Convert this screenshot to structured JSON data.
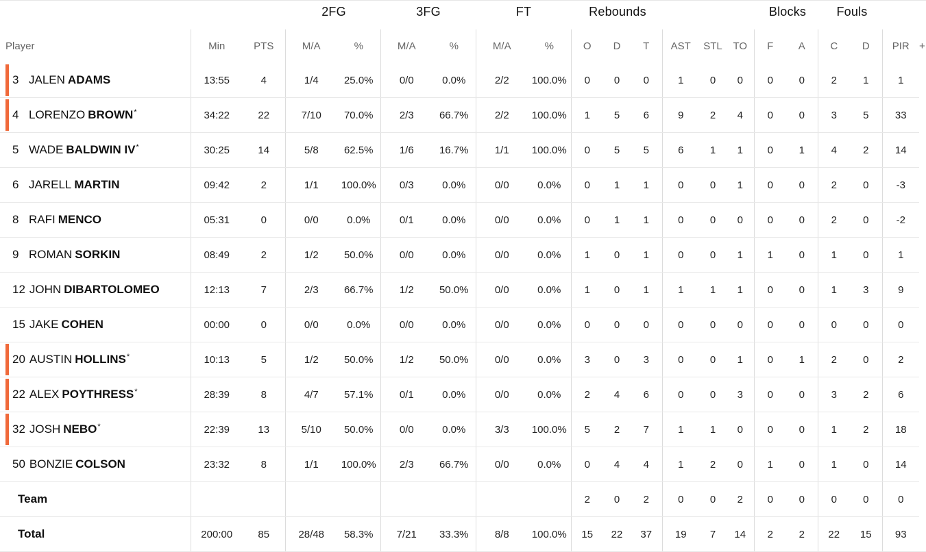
{
  "groups": {
    "fg2": "2FG",
    "fg3": "3FG",
    "ft": "FT",
    "rebounds": "Rebounds",
    "blocks": "Blocks",
    "fouls": "Fouls"
  },
  "columns": {
    "player": "Player",
    "min": "Min",
    "pts": "PTS",
    "fg2_ma": "M/A",
    "fg2_pct": "%",
    "fg3_ma": "M/A",
    "fg3_pct": "%",
    "ft_ma": "M/A",
    "ft_pct": "%",
    "reb_o": "O",
    "reb_d": "D",
    "reb_t": "T",
    "ast": "AST",
    "stl": "STL",
    "to": "TO",
    "blk_f": "F",
    "blk_a": "A",
    "foul_c": "C",
    "foul_d": "D",
    "pir": "PIR",
    "plus": "+"
  },
  "accent_color": "#f0693a",
  "players": [
    {
      "num": "3",
      "first": "JALEN",
      "last": "ADAMS",
      "star": "",
      "highlight": true,
      "min": "13:55",
      "pts": "4",
      "fg2_ma": "1/4",
      "fg2_pct": "25.0%",
      "fg3_ma": "0/0",
      "fg3_pct": "0.0%",
      "ft_ma": "2/2",
      "ft_pct": "100.0%",
      "reb_o": "0",
      "reb_d": "0",
      "reb_t": "0",
      "ast": "1",
      "stl": "0",
      "to": "0",
      "blk_f": "0",
      "blk_a": "0",
      "foul_c": "2",
      "foul_d": "1",
      "pir": "1"
    },
    {
      "num": "4",
      "first": "LORENZO",
      "last": "BROWN",
      "star": "*",
      "highlight": true,
      "min": "34:22",
      "pts": "22",
      "fg2_ma": "7/10",
      "fg2_pct": "70.0%",
      "fg3_ma": "2/3",
      "fg3_pct": "66.7%",
      "ft_ma": "2/2",
      "ft_pct": "100.0%",
      "reb_o": "1",
      "reb_d": "5",
      "reb_t": "6",
      "ast": "9",
      "stl": "2",
      "to": "4",
      "blk_f": "0",
      "blk_a": "0",
      "foul_c": "3",
      "foul_d": "5",
      "pir": "33"
    },
    {
      "num": "5",
      "first": "WADE",
      "last": "BALDWIN IV",
      "star": "*",
      "highlight": false,
      "min": "30:25",
      "pts": "14",
      "fg2_ma": "5/8",
      "fg2_pct": "62.5%",
      "fg3_ma": "1/6",
      "fg3_pct": "16.7%",
      "ft_ma": "1/1",
      "ft_pct": "100.0%",
      "reb_o": "0",
      "reb_d": "5",
      "reb_t": "5",
      "ast": "6",
      "stl": "1",
      "to": "1",
      "blk_f": "0",
      "blk_a": "1",
      "foul_c": "4",
      "foul_d": "2",
      "pir": "14"
    },
    {
      "num": "6",
      "first": "JARELL",
      "last": "MARTIN",
      "star": "",
      "highlight": false,
      "min": "09:42",
      "pts": "2",
      "fg2_ma": "1/1",
      "fg2_pct": "100.0%",
      "fg3_ma": "0/3",
      "fg3_pct": "0.0%",
      "ft_ma": "0/0",
      "ft_pct": "0.0%",
      "reb_o": "0",
      "reb_d": "1",
      "reb_t": "1",
      "ast": "0",
      "stl": "0",
      "to": "1",
      "blk_f": "0",
      "blk_a": "0",
      "foul_c": "2",
      "foul_d": "0",
      "pir": "-3"
    },
    {
      "num": "8",
      "first": "RAFI",
      "last": "MENCO",
      "star": "",
      "highlight": false,
      "min": "05:31",
      "pts": "0",
      "fg2_ma": "0/0",
      "fg2_pct": "0.0%",
      "fg3_ma": "0/1",
      "fg3_pct": "0.0%",
      "ft_ma": "0/0",
      "ft_pct": "0.0%",
      "reb_o": "0",
      "reb_d": "1",
      "reb_t": "1",
      "ast": "0",
      "stl": "0",
      "to": "0",
      "blk_f": "0",
      "blk_a": "0",
      "foul_c": "2",
      "foul_d": "0",
      "pir": "-2"
    },
    {
      "num": "9",
      "first": "ROMAN",
      "last": "SORKIN",
      "star": "",
      "highlight": false,
      "min": "08:49",
      "pts": "2",
      "fg2_ma": "1/2",
      "fg2_pct": "50.0%",
      "fg3_ma": "0/0",
      "fg3_pct": "0.0%",
      "ft_ma": "0/0",
      "ft_pct": "0.0%",
      "reb_o": "1",
      "reb_d": "0",
      "reb_t": "1",
      "ast": "0",
      "stl": "0",
      "to": "1",
      "blk_f": "1",
      "blk_a": "0",
      "foul_c": "1",
      "foul_d": "0",
      "pir": "1"
    },
    {
      "num": "12",
      "first": "JOHN",
      "last": "DIBARTOLOMEO",
      "star": "",
      "highlight": false,
      "min": "12:13",
      "pts": "7",
      "fg2_ma": "2/3",
      "fg2_pct": "66.7%",
      "fg3_ma": "1/2",
      "fg3_pct": "50.0%",
      "ft_ma": "0/0",
      "ft_pct": "0.0%",
      "reb_o": "1",
      "reb_d": "0",
      "reb_t": "1",
      "ast": "1",
      "stl": "1",
      "to": "1",
      "blk_f": "0",
      "blk_a": "0",
      "foul_c": "1",
      "foul_d": "3",
      "pir": "9"
    },
    {
      "num": "15",
      "first": "JAKE",
      "last": "COHEN",
      "star": "",
      "highlight": false,
      "min": "00:00",
      "pts": "0",
      "fg2_ma": "0/0",
      "fg2_pct": "0.0%",
      "fg3_ma": "0/0",
      "fg3_pct": "0.0%",
      "ft_ma": "0/0",
      "ft_pct": "0.0%",
      "reb_o": "0",
      "reb_d": "0",
      "reb_t": "0",
      "ast": "0",
      "stl": "0",
      "to": "0",
      "blk_f": "0",
      "blk_a": "0",
      "foul_c": "0",
      "foul_d": "0",
      "pir": "0"
    },
    {
      "num": "20",
      "first": "AUSTIN",
      "last": "HOLLINS",
      "star": "*",
      "highlight": true,
      "min": "10:13",
      "pts": "5",
      "fg2_ma": "1/2",
      "fg2_pct": "50.0%",
      "fg3_ma": "1/2",
      "fg3_pct": "50.0%",
      "ft_ma": "0/0",
      "ft_pct": "0.0%",
      "reb_o": "3",
      "reb_d": "0",
      "reb_t": "3",
      "ast": "0",
      "stl": "0",
      "to": "1",
      "blk_f": "0",
      "blk_a": "1",
      "foul_c": "2",
      "foul_d": "0",
      "pir": "2"
    },
    {
      "num": "22",
      "first": "ALEX",
      "last": "POYTHRESS",
      "star": "*",
      "highlight": true,
      "min": "28:39",
      "pts": "8",
      "fg2_ma": "4/7",
      "fg2_pct": "57.1%",
      "fg3_ma": "0/1",
      "fg3_pct": "0.0%",
      "ft_ma": "0/0",
      "ft_pct": "0.0%",
      "reb_o": "2",
      "reb_d": "4",
      "reb_t": "6",
      "ast": "0",
      "stl": "0",
      "to": "3",
      "blk_f": "0",
      "blk_a": "0",
      "foul_c": "3",
      "foul_d": "2",
      "pir": "6"
    },
    {
      "num": "32",
      "first": "JOSH",
      "last": "NEBO",
      "star": "*",
      "highlight": true,
      "min": "22:39",
      "pts": "13",
      "fg2_ma": "5/10",
      "fg2_pct": "50.0%",
      "fg3_ma": "0/0",
      "fg3_pct": "0.0%",
      "ft_ma": "3/3",
      "ft_pct": "100.0%",
      "reb_o": "5",
      "reb_d": "2",
      "reb_t": "7",
      "ast": "1",
      "stl": "1",
      "to": "0",
      "blk_f": "0",
      "blk_a": "0",
      "foul_c": "1",
      "foul_d": "2",
      "pir": "18"
    },
    {
      "num": "50",
      "first": "BONZIE",
      "last": "COLSON",
      "star": "",
      "highlight": false,
      "min": "23:32",
      "pts": "8",
      "fg2_ma": "1/1",
      "fg2_pct": "100.0%",
      "fg3_ma": "2/3",
      "fg3_pct": "66.7%",
      "ft_ma": "0/0",
      "ft_pct": "0.0%",
      "reb_o": "0",
      "reb_d": "4",
      "reb_t": "4",
      "ast": "1",
      "stl": "2",
      "to": "0",
      "blk_f": "1",
      "blk_a": "0",
      "foul_c": "1",
      "foul_d": "0",
      "pir": "14"
    }
  ],
  "team": {
    "label": "Team",
    "min": "",
    "pts": "",
    "fg2_ma": "",
    "fg2_pct": "",
    "fg3_ma": "",
    "fg3_pct": "",
    "ft_ma": "",
    "ft_pct": "",
    "reb_o": "2",
    "reb_d": "0",
    "reb_t": "2",
    "ast": "0",
    "stl": "0",
    "to": "2",
    "blk_f": "0",
    "blk_a": "0",
    "foul_c": "0",
    "foul_d": "0",
    "pir": "0"
  },
  "total": {
    "label": "Total",
    "min": "200:00",
    "pts": "85",
    "fg2_ma": "28/48",
    "fg2_pct": "58.3%",
    "fg3_ma": "7/21",
    "fg3_pct": "33.3%",
    "ft_ma": "8/8",
    "ft_pct": "100.0%",
    "reb_o": "15",
    "reb_d": "22",
    "reb_t": "37",
    "ast": "19",
    "stl": "7",
    "to": "14",
    "blk_f": "2",
    "blk_a": "2",
    "foul_c": "22",
    "foul_d": "15",
    "pir": "93"
  }
}
